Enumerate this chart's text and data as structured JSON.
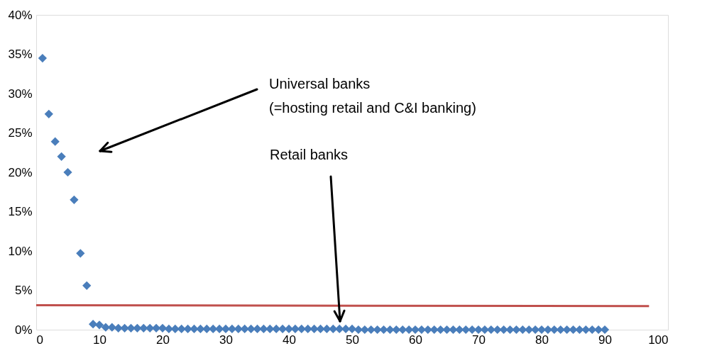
{
  "chart_data": {
    "type": "scatter",
    "marker": "diamond",
    "grid": false,
    "xlim": [
      0,
      100
    ],
    "xticks": [
      0,
      10,
      20,
      30,
      40,
      50,
      60,
      70,
      80,
      90,
      100
    ],
    "ylim": [
      0,
      40
    ],
    "yticks": [
      {
        "value": 0,
        "label": "0%"
      },
      {
        "value": 5,
        "label": "5%"
      },
      {
        "value": 10,
        "label": "10%"
      },
      {
        "value": 15,
        "label": "15%"
      },
      {
        "value": 20,
        "label": "20%"
      },
      {
        "value": 25,
        "label": "25%"
      },
      {
        "value": 30,
        "label": "30%"
      },
      {
        "value": 35,
        "label": "35%"
      },
      {
        "value": 40,
        "label": "40%"
      }
    ],
    "series": [
      {
        "color": "#4a7ebb",
        "x": [
          1,
          2,
          3,
          4,
          5,
          6,
          7,
          8,
          9,
          10,
          11,
          12,
          13,
          14,
          15,
          16,
          17,
          18,
          19,
          20,
          21,
          22,
          23,
          24,
          25,
          26,
          27,
          28,
          29,
          30,
          31,
          32,
          33,
          34,
          35,
          36,
          37,
          38,
          39,
          40,
          41,
          42,
          43,
          44,
          45,
          46,
          47,
          48,
          49,
          50,
          51,
          52,
          53,
          54,
          55,
          56,
          57,
          58,
          59,
          60,
          61,
          62,
          63,
          64,
          65,
          66,
          67,
          68,
          69,
          70,
          71,
          72,
          73,
          74,
          75,
          76,
          77,
          78,
          79,
          80,
          81,
          82,
          83,
          84,
          85,
          86,
          87,
          88,
          89,
          90
        ],
        "values": [
          34.5,
          27.4,
          23.9,
          22.0,
          20.0,
          16.5,
          9.7,
          5.6,
          0.7,
          0.6,
          0.3,
          0.3,
          0.2,
          0.2,
          0.2,
          0.2,
          0.2,
          0.2,
          0.2,
          0.2,
          0.1,
          0.1,
          0.1,
          0.1,
          0.1,
          0.1,
          0.1,
          0.1,
          0.1,
          0.1,
          0.1,
          0.1,
          0.1,
          0.1,
          0.1,
          0.1,
          0.1,
          0.1,
          0.1,
          0.1,
          0.1,
          0.1,
          0.1,
          0.1,
          0.1,
          0.1,
          0.1,
          0.1,
          0.1,
          0.1,
          0.0,
          0.0,
          0.0,
          0.0,
          0.0,
          0.0,
          0.0,
          0.0,
          0.0,
          0.0,
          0.0,
          0.0,
          0.0,
          0.0,
          0.0,
          0.0,
          0.0,
          0.0,
          0.0,
          0.0,
          0.0,
          0.0,
          0.0,
          0.0,
          0.0,
          0.0,
          0.0,
          0.0,
          0.0,
          0.0,
          0.0,
          0.0,
          0.0,
          0.0,
          0.0,
          0.0,
          0.0,
          0.0,
          0.0,
          0.0
        ]
      },
      {
        "type": "line",
        "marker": "none",
        "color": "#c0504d",
        "x": [
          0,
          97
        ],
        "values": [
          3.1,
          3.0
        ]
      }
    ],
    "annotations": [
      "Universal banks\n(=hosting retail and C&I banking)",
      "Retail banks"
    ]
  }
}
